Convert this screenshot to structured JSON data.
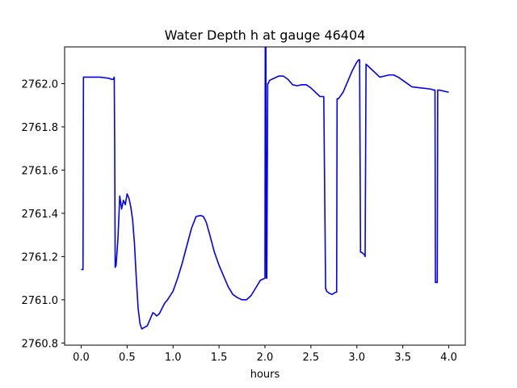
{
  "chart_data": {
    "type": "line",
    "title": "Water Depth h at gauge 46404",
    "xlabel": "hours",
    "ylabel": "",
    "xlim": [
      -0.18,
      4.18
    ],
    "ylim": [
      2760.79,
      2762.17
    ],
    "xticks": [
      0.0,
      0.5,
      1.0,
      1.5,
      2.0,
      2.5,
      3.0,
      3.5,
      4.0
    ],
    "xtick_labels": [
      "0.0",
      "0.5",
      "1.0",
      "1.5",
      "2.0",
      "2.5",
      "3.0",
      "3.5",
      "4.0"
    ],
    "yticks": [
      2760.8,
      2761.0,
      2761.2,
      2761.4,
      2761.6,
      2761.8,
      2762.0
    ],
    "ytick_labels": [
      "2760.8",
      "2761.0",
      "2761.2",
      "2761.4",
      "2761.6",
      "2761.8",
      "2762.0"
    ],
    "grid": false,
    "series": [
      {
        "color": "#0000ff",
        "x": [
          0.0,
          0.02,
          0.025,
          0.03,
          0.1,
          0.2,
          0.3,
          0.33,
          0.35,
          0.36,
          0.365,
          0.37,
          0.38,
          0.4,
          0.42,
          0.44,
          0.46,
          0.48,
          0.5,
          0.52,
          0.54,
          0.56,
          0.58,
          0.6,
          0.62,
          0.64,
          0.66,
          0.68,
          0.7,
          0.72,
          0.74,
          0.76,
          0.78,
          0.8,
          0.82,
          0.85,
          0.88,
          0.91,
          0.94,
          0.97,
          1.0,
          1.05,
          1.1,
          1.15,
          1.2,
          1.25,
          1.3,
          1.33,
          1.36,
          1.4,
          1.45,
          1.5,
          1.55,
          1.6,
          1.65,
          1.7,
          1.75,
          1.8,
          1.85,
          1.9,
          1.95,
          2.0,
          2.003,
          2.01,
          2.015,
          2.02,
          2.03,
          2.035,
          2.05,
          2.1,
          2.15,
          2.2,
          2.25,
          2.3,
          2.35,
          2.4,
          2.45,
          2.5,
          2.55,
          2.6,
          2.64,
          2.66,
          2.665,
          2.67,
          2.7,
          2.73,
          2.77,
          2.78,
          2.785,
          2.8,
          2.85,
          2.9,
          2.95,
          3.0,
          3.02,
          3.03,
          3.04,
          3.05,
          3.08,
          3.09,
          3.1,
          3.15,
          3.2,
          3.25,
          3.3,
          3.35,
          3.4,
          3.45,
          3.5,
          3.55,
          3.6,
          3.7,
          3.8,
          3.84,
          3.85,
          3.855,
          3.86,
          3.87,
          3.875,
          3.88,
          3.9,
          3.95,
          4.0
        ],
        "y": [
          2761.14,
          2761.14,
          2762.03,
          2762.03,
          2762.03,
          2762.03,
          2762.025,
          2762.02,
          2762.02,
          2762.03,
          2761.7,
          2761.15,
          2761.16,
          2761.28,
          2761.48,
          2761.42,
          2761.46,
          2761.44,
          2761.49,
          2761.47,
          2761.43,
          2761.37,
          2761.26,
          2761.1,
          2760.96,
          2760.89,
          2760.865,
          2760.87,
          2760.875,
          2760.88,
          2760.9,
          2760.92,
          2760.94,
          2760.935,
          2760.925,
          2760.935,
          2760.96,
          2760.985,
          2761.0,
          2761.02,
          2761.04,
          2761.1,
          2761.17,
          2761.25,
          2761.33,
          2761.385,
          2761.39,
          2761.385,
          2761.36,
          2761.3,
          2761.22,
          2761.16,
          2761.11,
          2761.06,
          2761.025,
          2761.01,
          2761.0,
          2761.0,
          2761.02,
          2761.055,
          2761.09,
          2761.1,
          2762.18,
          2762.18,
          2761.1,
          2761.1,
          2762.0,
          2762.0,
          2762.015,
          2762.025,
          2762.035,
          2762.035,
          2762.02,
          2761.995,
          2761.99,
          2761.995,
          2761.995,
          2761.98,
          2761.96,
          2761.94,
          2761.94,
          2761.05,
          2761.05,
          2761.04,
          2761.03,
          2761.025,
          2761.035,
          2761.035,
          2761.93,
          2761.93,
          2761.96,
          2762.01,
          2762.06,
          2762.1,
          2762.11,
          2762.11,
          2761.22,
          2761.22,
          2761.21,
          2761.2,
          2762.09,
          2762.07,
          2762.05,
          2762.03,
          2762.035,
          2762.04,
          2762.04,
          2762.03,
          2762.015,
          2762.0,
          2761.985,
          2761.98,
          2761.975,
          2761.97,
          2761.97,
          2761.08,
          2761.08,
          2761.08,
          2761.08,
          2761.97,
          2761.97,
          2761.965,
          2761.96
        ]
      }
    ]
  }
}
